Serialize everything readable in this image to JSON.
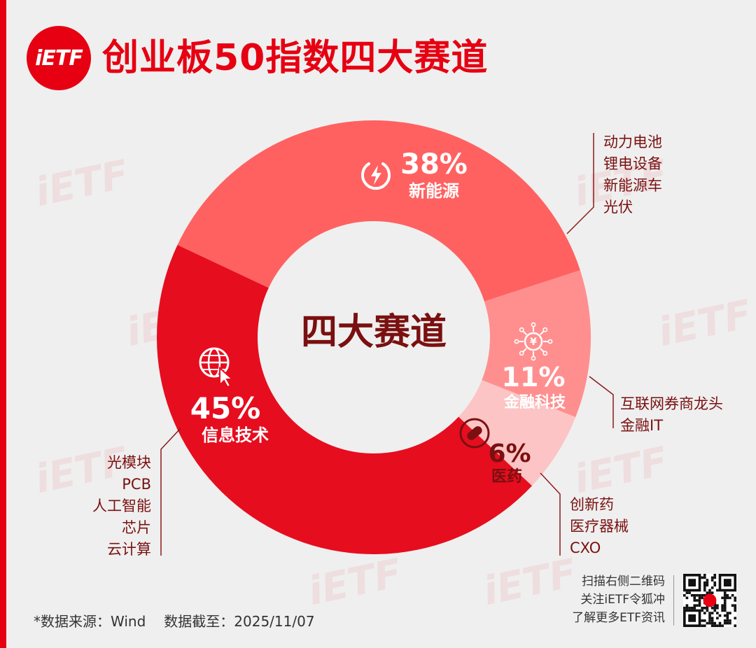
{
  "title": "创业板50指数四大赛道",
  "logo_text": "iETF",
  "colors": {
    "brand_red": "#e60012",
    "segment_it": "#e60d1f",
    "segment_energy": "#ff6161",
    "segment_fintech": "#ff8f8f",
    "segment_pharma": "#fcc4c4",
    "center_text": "#7a1010",
    "leader_line": "#8b1a1a"
  },
  "chart_data": {
    "type": "pie",
    "donut": true,
    "center_label": "四大赛道",
    "categories": [
      "新能源",
      "金融科技",
      "医药",
      "信息技术"
    ],
    "values": [
      38,
      11,
      6,
      45
    ],
    "labels": [
      "38%",
      "11%",
      "6%",
      "45%"
    ],
    "subsectors": {
      "新能源": [
        "动力电池",
        "锂电设备",
        "新能源车",
        "光伏"
      ],
      "金融科技": [
        "互联网券商龙头",
        "金融IT"
      ],
      "医药": [
        "创新药",
        "医疗器械",
        "CXO"
      ],
      "信息技术": [
        "光模块",
        "PCB",
        "人工智能",
        "芯片",
        "云计算"
      ]
    },
    "icons": [
      "lightning-icon",
      "yuan-circuit-icon",
      "pill-icon",
      "globe-cursor-icon"
    ]
  },
  "footer": {
    "source": "*数据来源：Wind",
    "date": "数据截至：2025/11/07",
    "qr_lines": [
      "扫描右侧二维码",
      "关注iETF令狐冲",
      "了解更多ETF资讯"
    ]
  },
  "watermark": "iETF"
}
